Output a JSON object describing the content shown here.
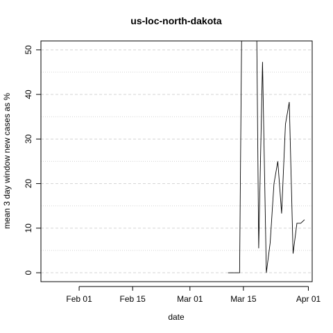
{
  "chart_data": {
    "type": "line",
    "title": "us-loc-north-dakota",
    "xlabel": "date",
    "ylabel": "mean  3  day window new cases as %",
    "x_ticks": [
      "Feb 01",
      "Feb 15",
      "Mar 01",
      "Mar 15",
      "Apr 01"
    ],
    "x_tick_dates": [
      "2020-02-01",
      "2020-02-15",
      "2020-03-01",
      "2020-03-15",
      "2020-04-01"
    ],
    "xlim": [
      "2020-01-22",
      "2020-04-02"
    ],
    "y_ticks": [
      0,
      10,
      20,
      30,
      40,
      50
    ],
    "ylim": [
      -2,
      52
    ],
    "grid": {
      "horizontal": true,
      "style": "dashed",
      "color": "#d3d3d3"
    },
    "line_color": "#000000",
    "series": [
      {
        "x": [
          "2020-03-11",
          "2020-03-12",
          "2020-03-13",
          "2020-03-14",
          "2020-03-15",
          "2020-03-18",
          "2020-03-19",
          "2020-03-20",
          "2020-03-21",
          "2020-03-22",
          "2020-03-23",
          "2020-03-24",
          "2020-03-25",
          "2020-03-26",
          "2020-03-27",
          "2020-03-28",
          "2020-03-29",
          "2020-03-30",
          "2020-03-31"
        ],
        "y": [
          0,
          0,
          0,
          0,
          100,
          100,
          5.5,
          47.3,
          0,
          6.7,
          20,
          25,
          13.3,
          33.3,
          38.3,
          4.3,
          11.1,
          11.1,
          11.9
        ]
      }
    ]
  }
}
